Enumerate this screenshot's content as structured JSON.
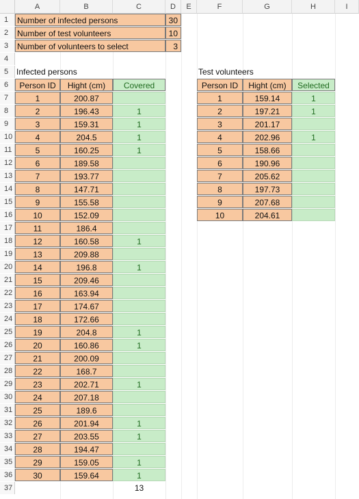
{
  "sheet": {
    "columns": [
      "A",
      "B",
      "C",
      "D",
      "E",
      "F",
      "G",
      "H",
      "I"
    ],
    "rows": [
      "1",
      "2",
      "3",
      "4",
      "5",
      "6",
      "7",
      "8",
      "9",
      "10",
      "11",
      "12",
      "13",
      "14",
      "15",
      "16",
      "17",
      "18",
      "19",
      "20",
      "21",
      "22",
      "23",
      "24",
      "25",
      "26",
      "27",
      "28",
      "29",
      "30",
      "31",
      "32",
      "33",
      "34",
      "35",
      "36",
      "37"
    ]
  },
  "params": [
    {
      "label": "Number of infected persons",
      "value": "30"
    },
    {
      "label": "Number of test volunteers",
      "value": "10"
    },
    {
      "label": "Number of volunteers to select",
      "value": "3"
    }
  ],
  "infected": {
    "title": "Infected persons",
    "headers": [
      "Person ID",
      "Hight (cm)",
      "Covered"
    ],
    "rows": [
      [
        "1",
        "200.87",
        ""
      ],
      [
        "2",
        "196.43",
        "1"
      ],
      [
        "3",
        "159.31",
        "1"
      ],
      [
        "4",
        "204.5",
        "1"
      ],
      [
        "5",
        "160.25",
        "1"
      ],
      [
        "6",
        "189.58",
        ""
      ],
      [
        "7",
        "193.77",
        ""
      ],
      [
        "8",
        "147.71",
        ""
      ],
      [
        "9",
        "155.58",
        ""
      ],
      [
        "10",
        "152.09",
        ""
      ],
      [
        "11",
        "186.4",
        ""
      ],
      [
        "12",
        "160.58",
        "1"
      ],
      [
        "13",
        "209.88",
        ""
      ],
      [
        "14",
        "196.8",
        "1"
      ],
      [
        "15",
        "209.46",
        ""
      ],
      [
        "16",
        "163.94",
        ""
      ],
      [
        "17",
        "174.67",
        ""
      ],
      [
        "18",
        "172.66",
        ""
      ],
      [
        "19",
        "204.8",
        "1"
      ],
      [
        "20",
        "160.86",
        "1"
      ],
      [
        "21",
        "200.09",
        ""
      ],
      [
        "22",
        "168.7",
        ""
      ],
      [
        "23",
        "202.71",
        "1"
      ],
      [
        "24",
        "207.18",
        ""
      ],
      [
        "25",
        "189.6",
        ""
      ],
      [
        "26",
        "201.94",
        "1"
      ],
      [
        "27",
        "203.55",
        "1"
      ],
      [
        "28",
        "194.47",
        ""
      ],
      [
        "29",
        "159.05",
        "1"
      ],
      [
        "30",
        "159.64",
        "1"
      ]
    ],
    "total": "13"
  },
  "volunteers": {
    "title": "Test volunteers",
    "headers": [
      "Person ID",
      "Hight (cm)",
      "Selected"
    ],
    "rows": [
      [
        "1",
        "159.14",
        "1"
      ],
      [
        "2",
        "197.21",
        "1"
      ],
      [
        "3",
        "201.17",
        ""
      ],
      [
        "4",
        "202.96",
        "1"
      ],
      [
        "5",
        "158.66",
        ""
      ],
      [
        "6",
        "190.96",
        ""
      ],
      [
        "7",
        "205.62",
        ""
      ],
      [
        "8",
        "197.73",
        ""
      ],
      [
        "9",
        "207.68",
        ""
      ],
      [
        "10",
        "204.61",
        ""
      ]
    ]
  }
}
